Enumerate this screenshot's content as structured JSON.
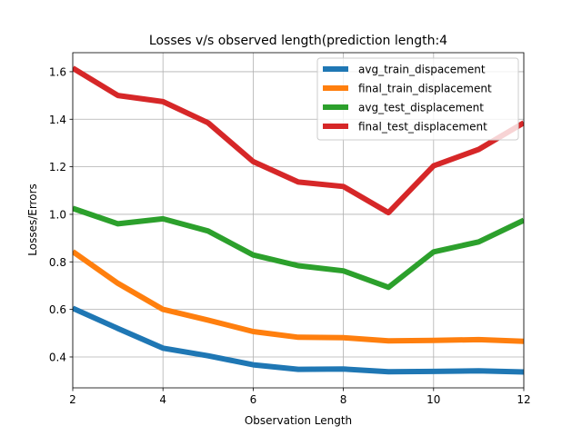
{
  "chart_data": {
    "type": "line",
    "title": "Losses v/s observed length(prediction length:4",
    "xlabel": "Observation Length",
    "ylabel": "Losses/Errors",
    "xlim": [
      2,
      12
    ],
    "ylim": [
      0.27,
      1.68
    ],
    "grid": true,
    "legend_position": "top-right",
    "x": [
      2,
      3,
      4,
      5,
      6,
      7,
      8,
      9,
      10,
      11,
      12
    ],
    "xticks": [
      2,
      4,
      6,
      8,
      10,
      12
    ],
    "yticks": [
      0.4,
      0.6,
      0.8,
      1.0,
      1.2,
      1.4,
      1.6
    ],
    "ytick_labels": [
      "0.4",
      "0.6",
      "0.8",
      "1.0",
      "1.2",
      "1.4",
      "1.6"
    ],
    "series": [
      {
        "name": "avg_train_dispacement",
        "color": "#1f77b4",
        "values": [
          0.605,
          0.52,
          0.437,
          0.405,
          0.367,
          0.348,
          0.349,
          0.338,
          0.339,
          0.342,
          0.337
        ]
      },
      {
        "name": "final_train_displacement",
        "color": "#ff7f0e",
        "values": [
          0.843,
          0.71,
          0.6,
          0.555,
          0.507,
          0.483,
          0.481,
          0.468,
          0.47,
          0.473,
          0.466
        ]
      },
      {
        "name": "avg_test_displacement",
        "color": "#2ca02c",
        "values": [
          1.025,
          0.96,
          0.981,
          0.93,
          0.829,
          0.784,
          0.762,
          0.693,
          0.842,
          0.884,
          0.975
        ]
      },
      {
        "name": "final_test_displacement",
        "color": "#d62728",
        "values": [
          1.615,
          1.5,
          1.474,
          1.385,
          1.222,
          1.136,
          1.117,
          1.007,
          1.204,
          1.273,
          1.385
        ]
      }
    ]
  }
}
